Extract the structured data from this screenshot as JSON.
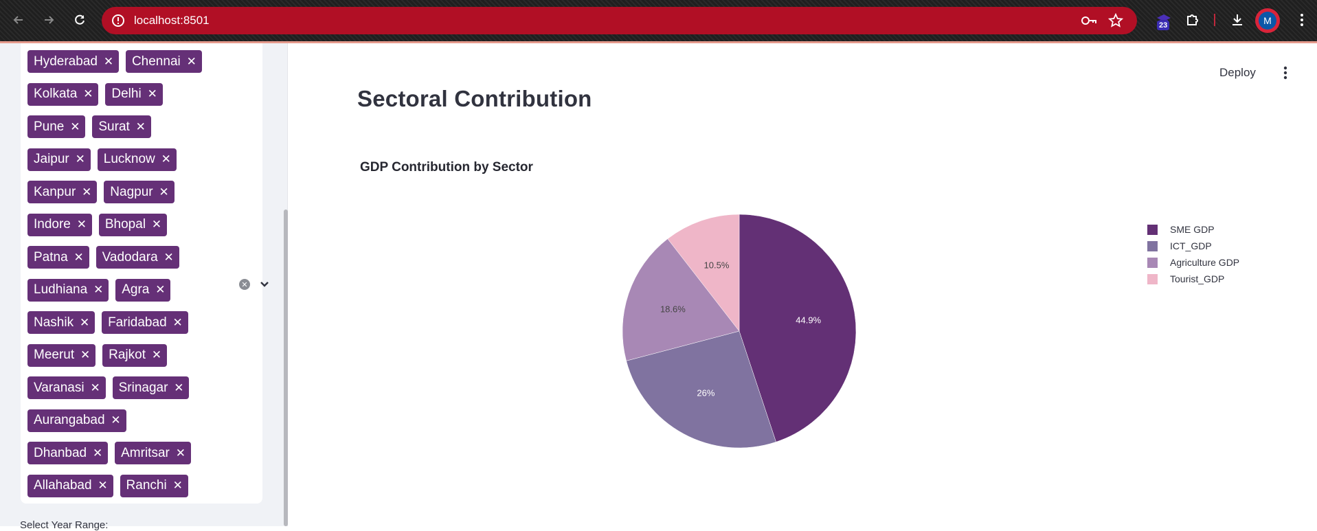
{
  "browser": {
    "url": "localhost:8501",
    "extension_badge": "23",
    "avatar_initial": "M",
    "icons": [
      "back-icon",
      "forward-icon",
      "reload-icon",
      "site-info-icon",
      "key-icon",
      "star-icon",
      "extension-icon",
      "puzzle-icon",
      "download-icon"
    ]
  },
  "sidebar": {
    "tag_rows": [
      [
        "Hyderabad",
        "Chennai"
      ],
      [
        "Kolkata",
        "Delhi"
      ],
      [
        "Pune",
        "Surat"
      ],
      [
        "Jaipur",
        "Lucknow"
      ],
      [
        "Kanpur",
        "Nagpur"
      ],
      [
        "Indore",
        "Bhopal"
      ],
      [
        "Patna",
        "Vadodara"
      ],
      [
        "Ludhiana",
        "Agra"
      ],
      [
        "Nashik",
        "Faridabad"
      ],
      [
        "Meerut",
        "Rajkot"
      ],
      [
        "Varanasi",
        "Srinagar"
      ],
      [
        "Aurangabad"
      ],
      [
        "Dhanbad",
        "Amritsar"
      ],
      [
        "Allahabad",
        "Ranchi"
      ]
    ],
    "tag_remove_symbol": "✕",
    "year_label": "Select Year Range:"
  },
  "header": {
    "deploy_label": "Deploy"
  },
  "main": {
    "title": "Sectoral Contribution"
  },
  "chart_data": {
    "type": "pie",
    "title": "GDP Contribution by Sector",
    "labels": [
      "SME GDP",
      "ICT_GDP",
      "Agriculture GDP",
      "Tourist_GDP"
    ],
    "values": [
      44.9,
      26,
      18.6,
      10.5
    ],
    "value_labels": [
      "44.9%",
      "26%",
      "18.6%",
      "10.5%"
    ],
    "colors": [
      "#633075",
      "#8073a0",
      "#a888b5",
      "#efb6c8"
    ],
    "legend_position": "top-right",
    "sort_descending": true,
    "direction": "clockwise",
    "start_angle": "top"
  }
}
